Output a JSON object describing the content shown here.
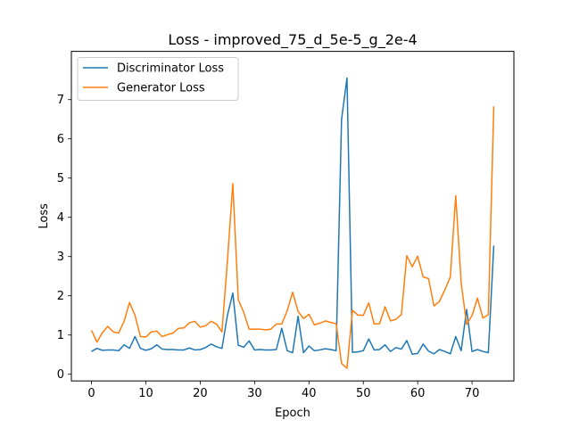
{
  "chart_data": {
    "type": "line",
    "title": "Loss - improved_75_d_5e-5_g_2e-4",
    "xlabel": "Epoch",
    "ylabel": "Loss",
    "xlim": [
      -3.7,
      77.7
    ],
    "ylim": [
      -0.17,
      8.23
    ],
    "xticks": [
      0,
      10,
      20,
      30,
      40,
      50,
      60,
      70
    ],
    "yticks": [
      0,
      1,
      2,
      3,
      4,
      5,
      6,
      7
    ],
    "grid": false,
    "legend_position": "top-left",
    "x": [
      0,
      1,
      2,
      3,
      4,
      5,
      6,
      7,
      8,
      9,
      10,
      11,
      12,
      13,
      14,
      15,
      16,
      17,
      18,
      19,
      20,
      21,
      22,
      23,
      24,
      25,
      26,
      27,
      28,
      29,
      30,
      31,
      32,
      33,
      34,
      35,
      36,
      37,
      38,
      39,
      40,
      41,
      42,
      43,
      44,
      45,
      46,
      47,
      48,
      49,
      50,
      51,
      52,
      53,
      54,
      55,
      56,
      57,
      58,
      59,
      60,
      61,
      62,
      63,
      64,
      65,
      66,
      67,
      68,
      69,
      70,
      71,
      72,
      73,
      74
    ],
    "series": [
      {
        "name": "Discriminator Loss",
        "color": "#1f77b4",
        "values": [
          0.58,
          0.66,
          0.61,
          0.62,
          0.62,
          0.6,
          0.75,
          0.66,
          0.96,
          0.66,
          0.61,
          0.65,
          0.75,
          0.64,
          0.63,
          0.63,
          0.62,
          0.62,
          0.67,
          0.62,
          0.63,
          0.68,
          0.77,
          0.7,
          0.66,
          1.5,
          2.07,
          0.74,
          0.69,
          0.85,
          0.62,
          0.63,
          0.62,
          0.62,
          0.63,
          1.17,
          0.6,
          0.55,
          1.48,
          0.55,
          0.72,
          0.6,
          0.62,
          0.65,
          0.63,
          0.6,
          6.5,
          7.55,
          0.56,
          0.57,
          0.6,
          0.9,
          0.62,
          0.63,
          0.75,
          0.58,
          0.68,
          0.64,
          0.86,
          0.51,
          0.53,
          0.77,
          0.59,
          0.52,
          0.63,
          0.58,
          0.52,
          0.96,
          0.6,
          1.65,
          0.58,
          0.63,
          0.58,
          0.55,
          3.28
        ]
      },
      {
        "name": "Generator Loss",
        "color": "#ff7f0e",
        "values": [
          1.12,
          0.82,
          1.06,
          1.22,
          1.08,
          1.05,
          1.35,
          1.83,
          1.5,
          0.96,
          0.95,
          1.08,
          1.1,
          0.96,
          1.01,
          1.05,
          1.17,
          1.18,
          1.31,
          1.35,
          1.2,
          1.24,
          1.35,
          1.28,
          1.08,
          2.88,
          4.86,
          1.9,
          1.58,
          1.15,
          1.15,
          1.15,
          1.13,
          1.15,
          1.28,
          1.28,
          1.62,
          2.09,
          1.6,
          1.42,
          1.53,
          1.26,
          1.3,
          1.36,
          1.32,
          1.29,
          0.28,
          0.15,
          1.63,
          1.51,
          1.5,
          1.82,
          1.28,
          1.29,
          1.72,
          1.36,
          1.4,
          1.52,
          3.02,
          2.74,
          3.01,
          2.48,
          2.44,
          1.74,
          1.86,
          2.15,
          2.48,
          4.55,
          2.33,
          1.27,
          1.5,
          1.94,
          1.43,
          1.52,
          6.83
        ]
      }
    ]
  }
}
